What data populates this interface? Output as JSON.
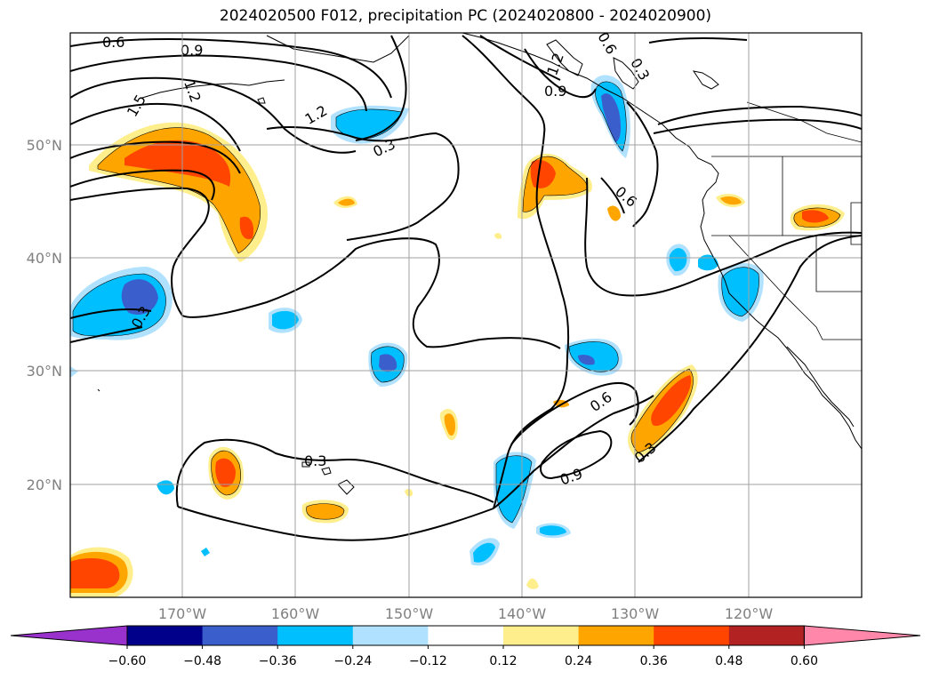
{
  "title": "2024020500 F012, precipitation PC (2024020800 - 2024020900)",
  "axes": {
    "lat_ticks": [
      "20°N",
      "30°N",
      "40°N",
      "50°N"
    ],
    "lon_ticks": [
      "170°W",
      "160°W",
      "150°W",
      "140°W",
      "130°W",
      "120°W"
    ]
  },
  "contour_labels": [
    "0.6",
    "0.9",
    "1.2",
    "1.5",
    "1.2",
    "0.3",
    "0.3",
    "0.9",
    "1.2",
    "0.6",
    "0.3",
    "0.6",
    "0.3",
    "0.6",
    "0.9",
    "0.3"
  ],
  "colorbar": {
    "ticks": [
      "−0.60",
      "−0.48",
      "−0.36",
      "−0.24",
      "−0.12",
      "0.12",
      "0.24",
      "0.36",
      "0.48",
      "0.60"
    ],
    "colors": [
      "#9932cc",
      "#00008b",
      "#3a5fcd",
      "#00bfff",
      "#b0e2ff",
      "#ffffff",
      "#ffee8c",
      "#ffa500",
      "#ff4500",
      "#b22222",
      "#ff88aa"
    ]
  }
}
